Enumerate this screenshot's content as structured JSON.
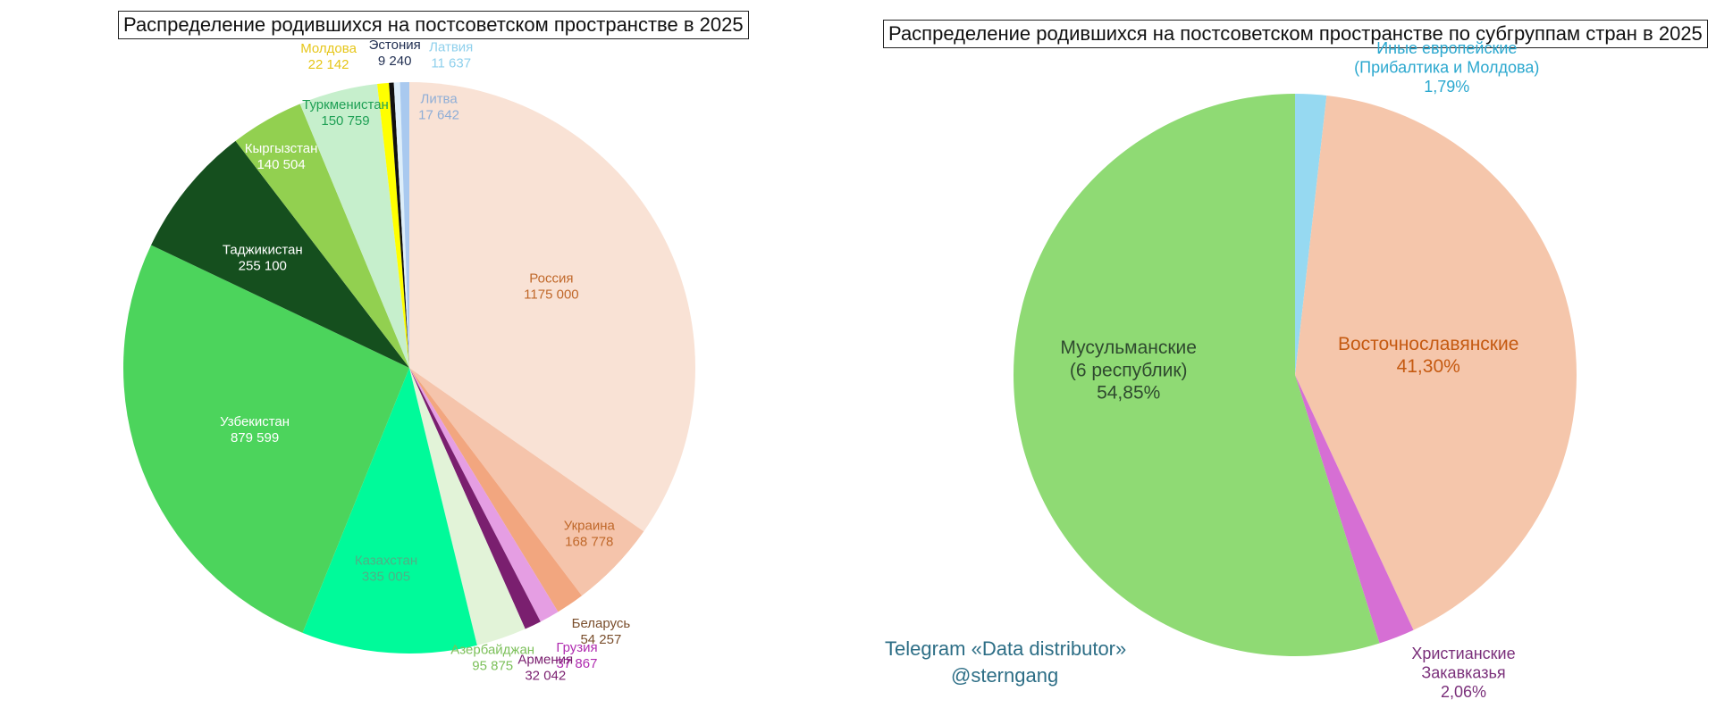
{
  "chart_data": [
    {
      "type": "pie",
      "title": "Распределение родившихся на постсоветском пространстве в 2025",
      "slices": [
        {
          "name": "Россия",
          "value": 1175000,
          "value_label": "1175 000",
          "color": "#f9e2d5",
          "text_color": "#c0682a"
        },
        {
          "name": "Украина",
          "value": 168778,
          "value_label": "168 778",
          "color": "#f5c4ab",
          "text_color": "#c0682a"
        },
        {
          "name": "Беларусь",
          "value": 54257,
          "value_label": "54 257",
          "color": "#f2a67f",
          "text_color": "#7a4e2c"
        },
        {
          "name": "Грузия",
          "value": 37867,
          "value_label": "37 867",
          "color": "#e59ee3",
          "text_color": "#b02bb0"
        },
        {
          "name": "Армения",
          "value": 32042,
          "value_label": "32 042",
          "color": "#7a1f6f",
          "text_color": "#7a1f6f"
        },
        {
          "name": "Азербайджан",
          "value": 95875,
          "value_label": "95 875",
          "color": "#e2f3d8",
          "text_color": "#7cc05a"
        },
        {
          "name": "Казахстан",
          "value": 335005,
          "value_label": "335 005",
          "color": "#00fa9a",
          "text_color": "#4fb086"
        },
        {
          "name": "Узбекистан",
          "value": 879599,
          "value_label": "879 599",
          "color": "#4cd45c",
          "text_color": "#ffffff"
        },
        {
          "name": "Таджикистан",
          "value": 255100,
          "value_label": "255 100",
          "color": "#154f1e",
          "text_color": "#ffffff"
        },
        {
          "name": "Кыргызстан",
          "value": 140504,
          "value_label": "140 504",
          "color": "#92d050",
          "text_color": "#ffffff"
        },
        {
          "name": "Туркменистан",
          "value": 150759,
          "value_label": "150 759",
          "color": "#c6efcc",
          "text_color": "#1fa055"
        },
        {
          "name": "Молдова",
          "value": 22142,
          "value_label": "22 142",
          "color": "#ffff00",
          "text_color": "#e6c619"
        },
        {
          "name": "Эстония",
          "value": 9240,
          "value_label": "9 240",
          "color": "#111111",
          "text_color": "#1f2d50"
        },
        {
          "name": "Латвия",
          "value": 11637,
          "value_label": "11 637",
          "color": "#ddeefa",
          "text_color": "#8fd0ec"
        },
        {
          "name": "Литва",
          "value": 17642,
          "value_label": "17 642",
          "color": "#a9c9ef",
          "text_color": "#8faed6"
        }
      ]
    },
    {
      "type": "pie",
      "title": "Распределение родившихся на постсоветском пространстве по субгруппам стран в 2025",
      "slices": [
        {
          "name_lines": [
            "Иные европейские",
            "(Прибалтика и Молдова)"
          ],
          "value": 1.79,
          "value_label": "1,79%",
          "color": "#96d9f1",
          "text_color": "#2ba8cf"
        },
        {
          "name_lines": [
            "Восточнославянские"
          ],
          "value": 41.3,
          "value_label": "41,30%",
          "color": "#f5c6ab",
          "text_color": "#c55a11"
        },
        {
          "name_lines": [
            "Христианские",
            "Закавказья"
          ],
          "value": 2.06,
          "value_label": "2,06%",
          "color": "#d66fd4",
          "text_color": "#7a2f7a"
        },
        {
          "name_lines": [
            "Мусульманские",
            "(6 республик)"
          ],
          "value": 54.85,
          "value_label": "54,85%",
          "color": "#8fda74",
          "text_color": "#2f4a2f"
        }
      ]
    }
  ],
  "credit": {
    "line1": "Telegram «Data distributor»",
    "line2": "@sterngang"
  }
}
